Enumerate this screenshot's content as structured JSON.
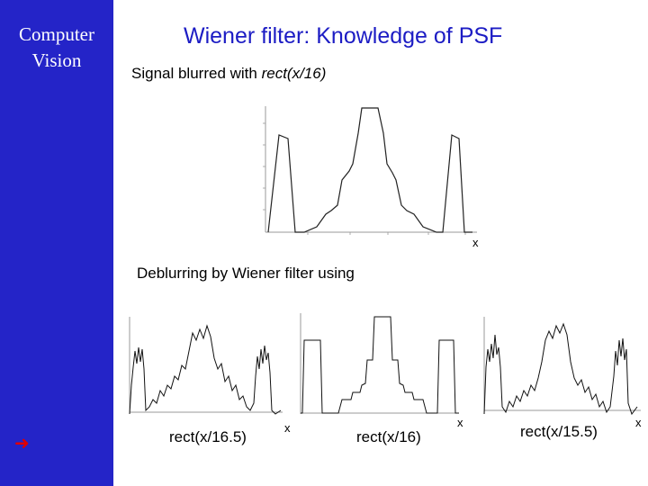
{
  "sidebar": {
    "title_line1": "Computer",
    "title_line2": "Vision",
    "nav_arrow": "➜",
    "color": "#2424c8"
  },
  "slide": {
    "title": "Wiener filter: Knowledge of PSF",
    "title_color": "#1c1cc4"
  },
  "top_plot": {
    "label_prefix": "Signal blurred with ",
    "label_fn": "rect(x/16)",
    "x_axis_label": "x"
  },
  "bottom": {
    "label": "Deblurring by Wiener filter using",
    "plots": [
      {
        "x_axis_label": "x",
        "caption": "rect(x/16.5)"
      },
      {
        "x_axis_label": "x",
        "caption": "rect(x/16)"
      },
      {
        "x_axis_label": "x",
        "caption": "rect(x/15.5)"
      }
    ]
  }
}
